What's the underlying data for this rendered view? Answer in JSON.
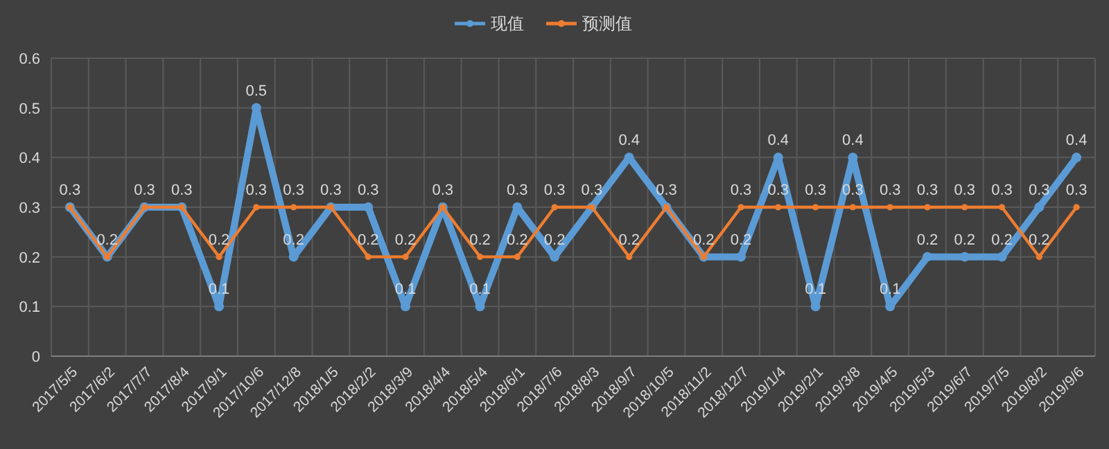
{
  "chart_data": {
    "type": "line",
    "categories": [
      "2017/5/5",
      "2017/6/2",
      "2017/7/7",
      "2017/8/4",
      "2017/9/1",
      "2017/10/6",
      "2017/12/8",
      "2018/1/5",
      "2018/2/2",
      "2018/3/9",
      "2018/4/4",
      "2018/5/4",
      "2018/6/1",
      "2018/7/6",
      "2018/8/3",
      "2018/9/7",
      "2018/10/5",
      "2018/11/2",
      "2018/12/7",
      "2019/1/4",
      "2019/2/1",
      "2019/3/8",
      "2019/4/5",
      "2019/5/3",
      "2019/6/7",
      "2019/7/5",
      "2019/8/2",
      "2019/9/6"
    ],
    "series": [
      {
        "name": "现值",
        "color": "#5b9bd5",
        "values": [
          0.3,
          0.2,
          0.3,
          0.3,
          0.1,
          0.5,
          0.2,
          0.3,
          0.3,
          0.1,
          0.3,
          0.1,
          0.3,
          0.2,
          0.3,
          0.4,
          0.3,
          0.2,
          0.2,
          0.4,
          0.1,
          0.4,
          0.1,
          0.2,
          0.2,
          0.2,
          0.3,
          0.4
        ],
        "value_labels": [
          "0.3",
          "0.2",
          "0.3",
          "0.3",
          "0.1",
          "0.5",
          "0.2",
          "0.3",
          "0.3",
          "0.1",
          "0.3",
          "0.1",
          "0.3",
          "0.2",
          "0.3",
          "0.4",
          "0.3",
          "0.2",
          "0.2",
          "0.4",
          "0.1",
          "0.4",
          "0.1",
          "0.2",
          "0.2",
          "0.2",
          "0.3",
          "0.4"
        ]
      },
      {
        "name": "预测值",
        "color": "#ed7d31",
        "values": [
          0.3,
          0.2,
          0.3,
          0.3,
          0.2,
          0.3,
          0.3,
          0.3,
          0.2,
          0.2,
          0.3,
          0.2,
          0.2,
          0.3,
          0.3,
          0.2,
          0.3,
          0.2,
          0.3,
          0.3,
          0.3,
          0.3,
          0.3,
          0.3,
          0.3,
          0.3,
          0.2,
          0.3
        ],
        "value_labels": [
          null,
          null,
          null,
          null,
          "0.2",
          "0.3",
          "0.3",
          null,
          "0.2",
          "0.2",
          null,
          "0.2",
          "0.2",
          "0.3",
          null,
          "0.2",
          null,
          null,
          "0.3",
          "0.3",
          "0.3",
          "0.3",
          "0.3",
          "0.3",
          "0.3",
          "0.3",
          "0.2",
          "0.3"
        ]
      }
    ],
    "ylim": [
      0,
      0.6
    ],
    "yticks": [
      0,
      0.1,
      0.2,
      0.3,
      0.4,
      0.5,
      0.6
    ],
    "grid": true,
    "legend": "top",
    "marker": "circle",
    "line_style": "solid"
  }
}
